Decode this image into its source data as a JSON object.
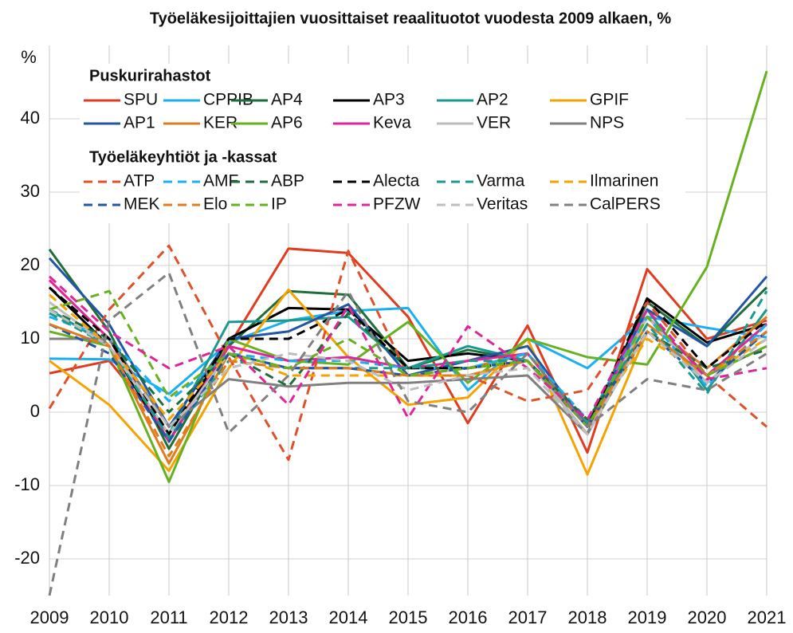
{
  "chart_data": {
    "type": "line",
    "title": "Työeläkesijoittajien vuosittaiset reaalituotot vuodesta 2009 alkaen, %",
    "y_label": "%",
    "legend_titles": [
      "Puskurirahastot",
      "Työeläkeyhtiöt ja -kassat"
    ],
    "x": [
      2009,
      2010,
      2011,
      2012,
      2013,
      2014,
      2015,
      2016,
      2017,
      2018,
      2019,
      2020,
      2021
    ],
    "xlim": [
      2009,
      2021
    ],
    "xticks": [
      2009,
      2010,
      2011,
      2012,
      2013,
      2014,
      2015,
      2016,
      2017,
      2018,
      2019,
      2020,
      2021
    ],
    "ylim": [
      -25,
      50
    ],
    "yticks": [
      -20,
      -10,
      0,
      10,
      20,
      30,
      40
    ],
    "grid": true,
    "series": [
      {
        "name": "SPU",
        "color": "#e03c1f",
        "dashed": false,
        "values": [
          5.3,
          7,
          -3,
          9,
          22.3,
          21.7,
          13,
          -1.5,
          11.8,
          -5.5,
          19.5,
          10,
          12.5
        ]
      },
      {
        "name": "CPPIB",
        "color": "#1ab0f0",
        "dashed": false,
        "values": [
          7.3,
          7.2,
          2.5,
          9.5,
          12.5,
          13.8,
          14.2,
          3,
          10,
          6,
          13,
          11.5,
          10.2
        ]
      },
      {
        "name": "AP4",
        "color": "#1e6e3c",
        "dashed": false,
        "values": [
          22.2,
          11,
          -5,
          9,
          16.5,
          16,
          6,
          8.5,
          7,
          -3,
          15,
          9,
          17
        ]
      },
      {
        "name": "AP3",
        "color": "#000000",
        "dashed": false,
        "values": [
          17,
          9,
          -4,
          10,
          14.2,
          14,
          7,
          8,
          7,
          -3,
          15.5,
          9.5,
          12
        ]
      },
      {
        "name": "AP2",
        "color": "#1a9a8e",
        "dashed": false,
        "values": [
          14,
          9,
          -3,
          12.3,
          12.5,
          13,
          6,
          9,
          7,
          -1.5,
          14,
          3,
          14
        ]
      },
      {
        "name": "GPIF",
        "color": "#f5a300",
        "dashed": false,
        "values": [
          7,
          1,
          -8,
          6,
          16.7,
          7.5,
          1,
          2,
          10,
          -8.5,
          11,
          5,
          12
        ]
      },
      {
        "name": "AP1",
        "color": "#2255a4",
        "dashed": false,
        "values": [
          21,
          12,
          -2,
          10,
          11,
          14.7,
          5,
          7,
          9,
          -2,
          14,
          9,
          18.5
        ]
      },
      {
        "name": "KER",
        "color": "#e07b1e",
        "dashed": false,
        "values": [
          12,
          9,
          -7,
          8,
          6,
          6,
          5,
          6,
          8,
          -2,
          12,
          6,
          13
        ]
      },
      {
        "name": "AP6",
        "color": "#66b21e",
        "dashed": false,
        "values": [
          11,
          9,
          -9.5,
          10,
          7,
          6.5,
          12.3,
          4,
          10,
          7.5,
          6.5,
          19.8,
          46.5
        ]
      },
      {
        "name": "Keva",
        "color": "#e0249a",
        "dashed": false,
        "values": [
          18,
          10,
          -4,
          9,
          7,
          7.5,
          6,
          7,
          8,
          -2,
          13,
          5,
          12
        ]
      },
      {
        "name": "VER",
        "color": "#bdbdbd",
        "dashed": false,
        "values": [
          15,
          9,
          -3,
          8,
          6,
          6,
          5,
          6,
          7,
          -3,
          13,
          4,
          11
        ]
      },
      {
        "name": "NPS",
        "color": "#808080",
        "dashed": false,
        "values": [
          10,
          10,
          -2,
          4.5,
          3.5,
          4,
          4,
          4.5,
          5,
          -3,
          11,
          5,
          9
        ]
      },
      {
        "name": "ATP",
        "color": "#e0502a",
        "dashed": true,
        "values": [
          0.5,
          14,
          22.7,
          7.5,
          -6.5,
          22,
          5,
          5,
          1.5,
          3,
          15,
          5,
          -2
        ]
      },
      {
        "name": "AMF",
        "color": "#1ab0f0",
        "dashed": true,
        "values": [
          13,
          10,
          1.5,
          8,
          7,
          7,
          6,
          6,
          8,
          -1,
          13,
          3.5,
          12
        ]
      },
      {
        "name": "ABP",
        "color": "#1e6e3c",
        "dashed": true,
        "values": [
          14,
          10,
          0,
          8,
          3.5,
          13.5,
          6,
          6,
          7,
          -1,
          11,
          6,
          8.5
        ]
      },
      {
        "name": "Alecta",
        "color": "#000000",
        "dashed": true,
        "values": [
          17,
          10,
          -3,
          10,
          10,
          14,
          6,
          6,
          7,
          -2,
          15.5,
          6,
          12.5
        ]
      },
      {
        "name": "Varma",
        "color": "#1a9a8e",
        "dashed": true,
        "values": [
          13.5,
          9,
          -3.5,
          7,
          6,
          6,
          6,
          7,
          7,
          -2,
          12,
          2.5,
          16.5
        ]
      },
      {
        "name": "Ilmarinen",
        "color": "#f5a300",
        "dashed": true,
        "values": [
          16,
          9,
          -1,
          8,
          5,
          5,
          5,
          5,
          7,
          -2,
          10,
          5,
          10
        ]
      },
      {
        "name": "MEK",
        "color": "#2255a4",
        "dashed": true,
        "values": [
          12,
          8,
          -4,
          8,
          6,
          6,
          5,
          6,
          7,
          -2,
          11,
          4,
          11
        ]
      },
      {
        "name": "Elo",
        "color": "#e07b1e",
        "dashed": true,
        "values": [
          12,
          9,
          -6,
          7,
          6,
          6,
          5,
          5,
          7,
          -2,
          11,
          5,
          11
        ]
      },
      {
        "name": "IP",
        "color": "#66b21e",
        "dashed": true,
        "values": [
          14,
          16.5,
          2,
          8,
          6,
          10,
          5,
          6,
          7,
          -2,
          13,
          5,
          9
        ]
      },
      {
        "name": "PFZW",
        "color": "#e0249a",
        "dashed": true,
        "values": [
          18.5,
          11,
          6,
          9,
          1,
          14.5,
          -0.8,
          11.7,
          6,
          -1,
          14,
          4.5,
          6
        ]
      },
      {
        "name": "Veritas",
        "color": "#bdbdbd",
        "dashed": true,
        "values": [
          14,
          9,
          -2,
          6,
          8,
          7,
          3,
          5,
          6,
          -3,
          11,
          4,
          10
        ]
      },
      {
        "name": "CalPERS",
        "color": "#808080",
        "dashed": true,
        "values": [
          -25,
          12.5,
          19,
          -2.8,
          5,
          16.5,
          1.5,
          0,
          8,
          -2,
          4.5,
          3,
          8
        ]
      }
    ]
  }
}
